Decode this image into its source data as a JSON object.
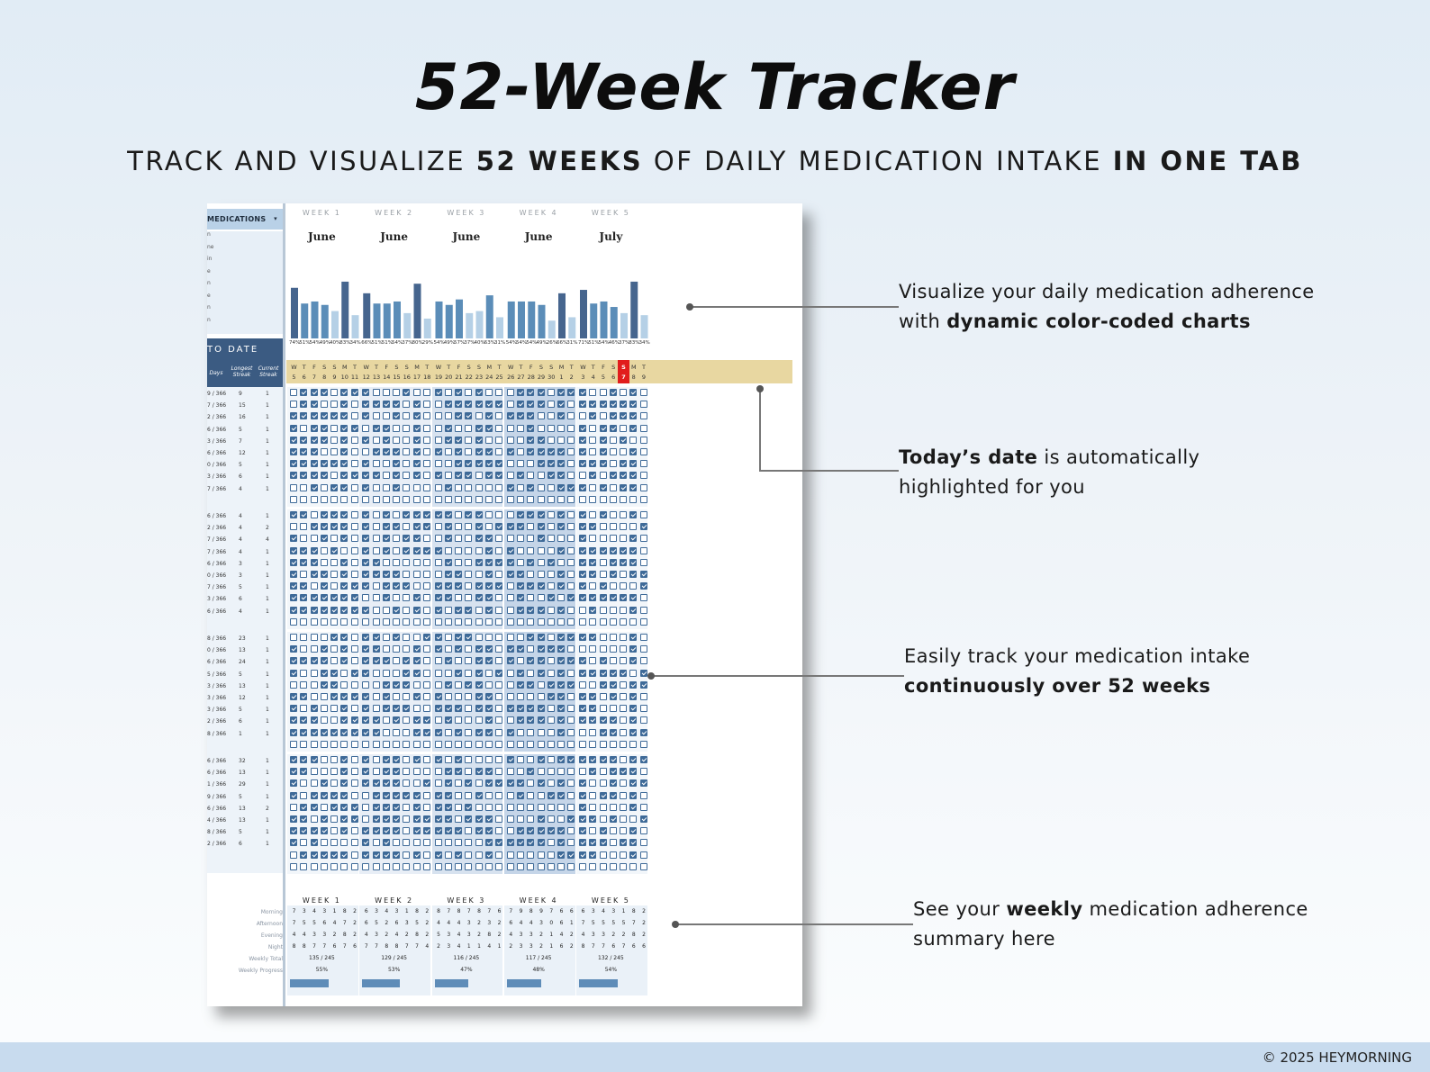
{
  "header": {
    "title": "52-Week Tracker",
    "subtitle_parts": [
      "TRACK AND VISUALIZE ",
      "52 WEEKS",
      " OF DAILY MEDICATION INTAKE ",
      "IN ONE TAB"
    ]
  },
  "sheet": {
    "medications_label": "MEDICATIONS",
    "med_items": [
      "n",
      "ne",
      "in",
      "e",
      "n",
      "e",
      "n",
      "n"
    ],
    "to_date_label": "TO DATE",
    "col_days": "Days",
    "col_longest": "Longest Streak",
    "col_current": "Current Streak",
    "weeks": [
      {
        "name": "WEEK 1",
        "month": "June"
      },
      {
        "name": "WEEK 2",
        "month": "June"
      },
      {
        "name": "WEEK 3",
        "month": "June"
      },
      {
        "name": "WEEK 4",
        "month": "June"
      },
      {
        "name": "WEEK 5",
        "month": "July"
      }
    ],
    "day_letters": [
      "W",
      "T",
      "F",
      "S",
      "S",
      "M",
      "T",
      "W",
      "T",
      "F",
      "S",
      "S",
      "M",
      "T",
      "W",
      "T",
      "F",
      "S",
      "S",
      "M",
      "T",
      "W",
      "T",
      "F",
      "S",
      "S",
      "M",
      "T",
      "W",
      "T",
      "F",
      "S",
      "S",
      "M",
      "T"
    ],
    "day_numbers": [
      "5",
      "6",
      "7",
      "8",
      "9",
      "10",
      "11",
      "12",
      "13",
      "14",
      "15",
      "16",
      "17",
      "18",
      "19",
      "20",
      "21",
      "22",
      "23",
      "24",
      "25",
      "26",
      "27",
      "28",
      "29",
      "30",
      "1",
      "2",
      "3",
      "4",
      "5",
      "6",
      "7",
      "8",
      "9"
    ],
    "today_index": 32,
    "stats_groups": [
      [
        [
          "9 / 366",
          "9",
          "1"
        ],
        [
          "7 / 366",
          "15",
          "1"
        ],
        [
          "2 / 366",
          "16",
          "1"
        ],
        [
          "6 / 366",
          "5",
          "1"
        ],
        [
          "3 / 366",
          "7",
          "1"
        ],
        [
          "6 / 366",
          "12",
          "1"
        ],
        [
          "0 / 366",
          "5",
          "1"
        ],
        [
          "3 / 366",
          "6",
          "1"
        ],
        [
          "7 / 366",
          "4",
          "1"
        ]
      ],
      [
        [
          "6 / 366",
          "4",
          "1"
        ],
        [
          "2 / 366",
          "4",
          "2"
        ],
        [
          "7 / 366",
          "4",
          "4"
        ],
        [
          "7 / 366",
          "4",
          "1"
        ],
        [
          "6 / 366",
          "3",
          "1"
        ],
        [
          "0 / 366",
          "3",
          "1"
        ],
        [
          "7 / 366",
          "5",
          "1"
        ],
        [
          "3 / 366",
          "6",
          "1"
        ],
        [
          "6 / 366",
          "4",
          "1"
        ]
      ],
      [
        [
          "8 / 366",
          "23",
          "1"
        ],
        [
          "0 / 366",
          "13",
          "1"
        ],
        [
          "6 / 366",
          "24",
          "1"
        ],
        [
          "5 / 366",
          "5",
          "1"
        ],
        [
          "3 / 366",
          "13",
          "1"
        ],
        [
          "3 / 366",
          "12",
          "1"
        ],
        [
          "3 / 366",
          "5",
          "1"
        ],
        [
          "2 / 366",
          "6",
          "1"
        ],
        [
          "8 / 366",
          "1",
          "1"
        ]
      ],
      [
        [
          "6 / 366",
          "32",
          "1"
        ],
        [
          "6 / 366",
          "13",
          "1"
        ],
        [
          "1 / 366",
          "29",
          "1"
        ],
        [
          "9 / 366",
          "5",
          "1"
        ],
        [
          "6 / 366",
          "13",
          "2"
        ],
        [
          "4 / 366",
          "13",
          "1"
        ],
        [
          "8 / 366",
          "5",
          "1"
        ],
        [
          "2 / 366",
          "6",
          "1"
        ]
      ]
    ],
    "summary": {
      "row_labels": [
        "Morning",
        "Afternoon",
        "Evening",
        "Night",
        "Weekly Total",
        "Weekly Progress"
      ],
      "morning": [
        "7",
        "3",
        "4",
        "3",
        "1",
        "8",
        "2",
        "6",
        "3",
        "4",
        "3",
        "1",
        "8",
        "2",
        "8",
        "7",
        "8",
        "7",
        "8",
        "7",
        "6",
        "7",
        "9",
        "8",
        "9",
        "7",
        "6",
        "6",
        "6",
        "3",
        "4",
        "3",
        "1",
        "8",
        "2"
      ],
      "afternoon": [
        "7",
        "5",
        "5",
        "6",
        "4",
        "7",
        "2",
        "6",
        "5",
        "2",
        "6",
        "3",
        "5",
        "2",
        "4",
        "4",
        "4",
        "3",
        "2",
        "3",
        "2",
        "6",
        "4",
        "4",
        "3",
        "0",
        "6",
        "1",
        "7",
        "5",
        "5",
        "5",
        "5",
        "7",
        "2"
      ],
      "evening": [
        "4",
        "4",
        "3",
        "3",
        "2",
        "8",
        "2",
        "4",
        "3",
        "2",
        "4",
        "2",
        "8",
        "2",
        "5",
        "3",
        "4",
        "3",
        "2",
        "8",
        "2",
        "4",
        "3",
        "3",
        "2",
        "1",
        "4",
        "2",
        "4",
        "3",
        "3",
        "2",
        "2",
        "8",
        "2"
      ],
      "night": [
        "8",
        "8",
        "7",
        "7",
        "6",
        "7",
        "6",
        "7",
        "7",
        "8",
        "8",
        "7",
        "7",
        "4",
        "2",
        "3",
        "4",
        "1",
        "1",
        "4",
        "1",
        "2",
        "3",
        "3",
        "2",
        "1",
        "6",
        "2",
        "8",
        "7",
        "7",
        "6",
        "7",
        "6",
        "6"
      ],
      "weekly_totals": [
        "135 / 245",
        "129 / 245",
        "116 / 245",
        "117 / 245",
        "132 / 245"
      ],
      "weekly_progress": [
        0.55,
        0.53,
        0.47,
        0.48,
        0.54
      ],
      "weekly_progress_labels": [
        "55%",
        "53%",
        "47%",
        "48%",
        "54%"
      ]
    }
  },
  "chart_data": {
    "type": "bar",
    "categories": [
      "5",
      "6",
      "7",
      "8",
      "9",
      "10",
      "11",
      "12",
      "13",
      "14",
      "15",
      "16",
      "17",
      "18",
      "19",
      "20",
      "21",
      "22",
      "23",
      "24",
      "25",
      "26",
      "27",
      "28",
      "29",
      "30",
      "1",
      "2",
      "3",
      "4",
      "5",
      "6",
      "7",
      "8",
      "9"
    ],
    "values": [
      74,
      51,
      54,
      49,
      40,
      83,
      34,
      66,
      51,
      51,
      54,
      37,
      80,
      29,
      54,
      49,
      57,
      37,
      40,
      63,
      31,
      54,
      54,
      54,
      49,
      26,
      66,
      31,
      71,
      51,
      54,
      46,
      37,
      83,
      34
    ],
    "labels": [
      "74%",
      "51%",
      "54%",
      "49%",
      "40%",
      "83%",
      "34%",
      "66%",
      "51%",
      "51%",
      "54%",
      "37%",
      "80%",
      "29%",
      "54%",
      "49%",
      "57%",
      "37%",
      "40%",
      "63%",
      "31%",
      "54%",
      "54%",
      "54%",
      "49%",
      "26%",
      "66%",
      "31%",
      "71%",
      "51%",
      "54%",
      "46%",
      "37%",
      "83%",
      "34%"
    ],
    "ylim": [
      0,
      100
    ]
  },
  "callouts": [
    {
      "text1": "Visualize your daily medication adherence",
      "text2_plain": "with ",
      "text2_bold": "dynamic color-coded charts"
    },
    {
      "text1_bold": "Today’s date",
      "text1_plain": " is automatically",
      "text2": "highlighted for you"
    },
    {
      "text1": "Easily track your medication  intake",
      "text2_bold": "continuously over 52 weeks"
    },
    {
      "text1_plain": "See your ",
      "text1_bold": "weekly",
      "text1_rest": " medication adherence",
      "text2": "summary here"
    }
  ],
  "footer": {
    "copyright": "© 2025 HEYMORNING"
  },
  "colors": {
    "bar_dark": "#46658e",
    "bar_mid": "#5b8db8",
    "bar_light": "#b5d0e6",
    "today": "#e11d1d",
    "day_band": "#e8d7a1",
    "checkbox": "#3e6a98"
  }
}
